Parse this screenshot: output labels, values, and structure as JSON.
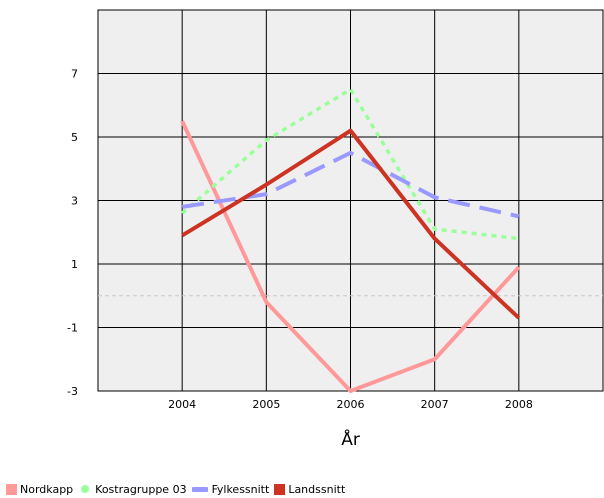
{
  "chart_data": {
    "type": "line",
    "title": "",
    "xlabel": "År",
    "ylabel": "",
    "x": [
      "2004",
      "2005",
      "2006",
      "2007",
      "2008"
    ],
    "x_range": [
      2003,
      2009
    ],
    "ylim": [
      -3,
      9
    ],
    "yticks": [
      -3,
      -1,
      1,
      3,
      5,
      7
    ],
    "y_tick_labels": [
      "-3",
      "-1",
      "1",
      "3",
      "5",
      "7"
    ],
    "zero_reference_line": 0,
    "grid": true,
    "plot_background": "#efefef",
    "legend_position": "bottom-left",
    "series": [
      {
        "name": "Nordkapp",
        "values": [
          5.5,
          -0.2,
          -3.0,
          -2.0,
          0.9
        ],
        "color": "#ff9999",
        "line_style": "solid",
        "legend_marker": "square"
      },
      {
        "name": "Kostragruppe 03",
        "values": [
          2.6,
          4.9,
          6.5,
          2.1,
          1.8
        ],
        "color": "#99ff99",
        "line_style": "dotted",
        "legend_marker": "dot"
      },
      {
        "name": "Fylkessnitt",
        "values": [
          2.8,
          3.2,
          4.5,
          3.1,
          2.5
        ],
        "color": "#9999ff",
        "line_style": "dashed",
        "legend_marker": "bar"
      },
      {
        "name": "Landssnitt",
        "values": [
          1.9,
          3.5,
          5.2,
          1.8,
          -0.7
        ],
        "color": "#cc3322",
        "line_style": "solid",
        "legend_marker": "square"
      }
    ]
  }
}
